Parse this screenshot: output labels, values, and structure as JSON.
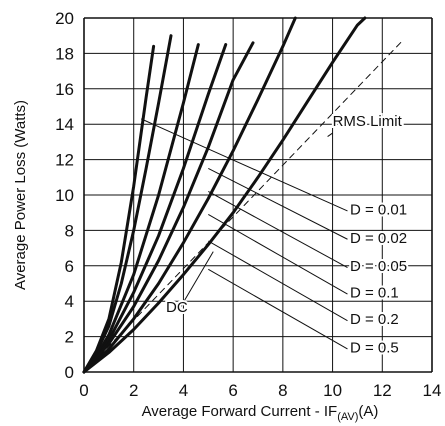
{
  "chart_data": {
    "type": "line",
    "xlabel": "Average Forward Current - I",
    "xlabel_sub_base": "F",
    "xlabel_sub_index": "(AV)",
    "xlabel_unit": "(A)",
    "ylabel": "Average  Power Loss (Watts)",
    "xlim": [
      0,
      14
    ],
    "ylim": [
      0,
      20
    ],
    "x_ticks": [
      "0",
      "2",
      "4",
      "6",
      "8",
      "10",
      "12",
      "14"
    ],
    "y_ticks": [
      "0",
      "2",
      "4",
      "6",
      "8",
      "10",
      "12",
      "14",
      "16",
      "18",
      "20"
    ],
    "grid": true,
    "series": [
      {
        "name": "D = 0.01",
        "style": "solid",
        "points": [
          [
            0,
            0
          ],
          [
            0.5,
            1.2
          ],
          [
            1.0,
            3.0
          ],
          [
            1.5,
            6.2
          ],
          [
            2.0,
            10.5
          ],
          [
            2.5,
            15.5
          ],
          [
            2.8,
            18.4
          ]
        ]
      },
      {
        "name": "D = 0.02",
        "style": "solid",
        "points": [
          [
            0,
            0
          ],
          [
            0.5,
            1.1
          ],
          [
            1.0,
            2.6
          ],
          [
            1.5,
            5.0
          ],
          [
            2.0,
            8.0
          ],
          [
            2.5,
            11.5
          ],
          [
            3.0,
            15.2
          ],
          [
            3.5,
            19.0
          ]
        ]
      },
      {
        "name": "D = 0.05",
        "style": "solid",
        "points": [
          [
            0,
            0
          ],
          [
            0.5,
            0.9
          ],
          [
            1.0,
            2.1
          ],
          [
            2.0,
            5.5
          ],
          [
            3.0,
            10.0
          ],
          [
            4.0,
            15.2
          ],
          [
            4.6,
            18.5
          ]
        ]
      },
      {
        "name": "D = 0.1",
        "style": "solid",
        "points": [
          [
            0,
            0
          ],
          [
            0.5,
            0.8
          ],
          [
            1.0,
            1.8
          ],
          [
            2.0,
            4.5
          ],
          [
            3.0,
            7.7
          ],
          [
            4.0,
            11.5
          ],
          [
            5.0,
            15.7
          ],
          [
            5.7,
            18.5
          ]
        ]
      },
      {
        "name": "D = 0.2",
        "style": "solid",
        "points": [
          [
            0,
            0
          ],
          [
            1.0,
            1.6
          ],
          [
            2.0,
            3.7
          ],
          [
            3.0,
            6.3
          ],
          [
            4.0,
            9.3
          ],
          [
            5.0,
            12.7
          ],
          [
            6.0,
            16.5
          ],
          [
            6.8,
            18.6
          ]
        ]
      },
      {
        "name": "D = 0.5",
        "style": "solid",
        "points": [
          [
            0,
            0
          ],
          [
            1.0,
            1.3
          ],
          [
            2.0,
            3.0
          ],
          [
            3.0,
            5.0
          ],
          [
            4.0,
            7.3
          ],
          [
            5.0,
            9.8
          ],
          [
            6.0,
            12.5
          ],
          [
            7.0,
            15.4
          ],
          [
            8.0,
            18.4
          ],
          [
            8.5,
            20.0
          ]
        ]
      },
      {
        "name": "DC",
        "style": "solid",
        "points": [
          [
            0,
            0
          ],
          [
            1.0,
            1.1
          ],
          [
            2.0,
            2.4
          ],
          [
            3.0,
            3.9
          ],
          [
            4.0,
            5.5
          ],
          [
            5.0,
            7.2
          ],
          [
            6.0,
            9.0
          ],
          [
            7.0,
            11.0
          ],
          [
            8.0,
            13.1
          ],
          [
            9.0,
            15.3
          ],
          [
            10.0,
            17.5
          ],
          [
            11.0,
            19.6
          ],
          [
            11.3,
            20.0
          ]
        ]
      },
      {
        "name": "RMS Limit",
        "style": "dashed",
        "points": [
          [
            0,
            0
          ],
          [
            12.8,
            18.7
          ]
        ]
      }
    ],
    "annotations": [
      {
        "text": "RMS Limit",
        "x": 10.0,
        "y": 13.9
      },
      {
        "text": "DC",
        "x": 3.3,
        "y": 3.4
      },
      {
        "text": "D = 0.01",
        "x": 10.7,
        "y": 8.9
      },
      {
        "text": "D = 0.02",
        "x": 10.7,
        "y": 7.3
      },
      {
        "text": "D = 0.05",
        "x": 10.7,
        "y": 5.7
      },
      {
        "text": "D = 0.1",
        "x": 10.7,
        "y": 4.2
      },
      {
        "text": "D = 0.2",
        "x": 10.7,
        "y": 2.7
      },
      {
        "text": "D = 0.5",
        "x": 10.7,
        "y": 1.1
      }
    ],
    "leaders": [
      {
        "label": "D = 0.01",
        "from": [
          5.0,
          12.6
        ],
        "to": [
          10.6,
          9.1
        ]
      },
      {
        "label": "D = 0.02",
        "from": [
          5.0,
          11.5
        ],
        "to": [
          10.6,
          7.5
        ]
      },
      {
        "label": "D = 0.05",
        "from": [
          5.0,
          10.2
        ],
        "to": [
          10.6,
          5.9
        ]
      },
      {
        "label": "D = 0.1",
        "from": [
          5.0,
          8.9
        ],
        "to": [
          10.6,
          4.4
        ]
      },
      {
        "label": "D = 0.2",
        "from": [
          5.0,
          7.4
        ],
        "to": [
          10.6,
          2.9
        ]
      },
      {
        "label": "D = 0.5",
        "from": [
          5.0,
          5.8
        ],
        "to": [
          10.6,
          1.3
        ]
      },
      {
        "label": "D extension",
        "from": [
          2.3,
          14.3
        ],
        "to": [
          5.0,
          12.6
        ]
      },
      {
        "label": "RMS Limit",
        "from": [
          9.8,
          13.3
        ],
        "to": [
          10.0,
          13.5
        ]
      },
      {
        "label": "DC",
        "from": [
          5.2,
          6.8
        ],
        "to": [
          3.9,
          3.7
        ]
      }
    ]
  }
}
